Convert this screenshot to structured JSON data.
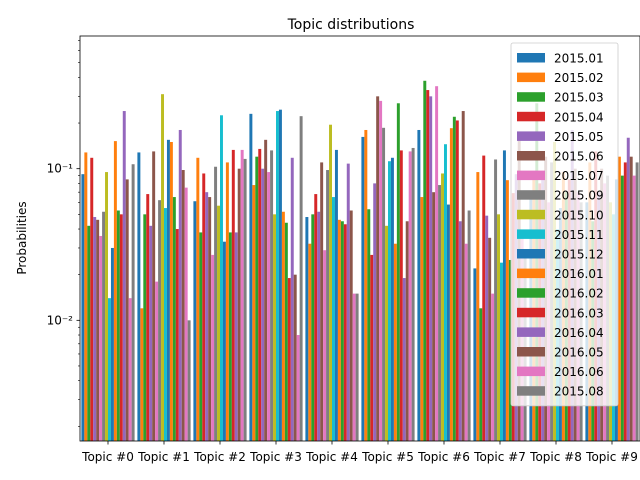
{
  "chart_data": {
    "type": "bar",
    "title": "Topic distributions",
    "xlabel": "",
    "ylabel": "Probabilities",
    "yscale": "log",
    "ylim": [
      0.0016,
      0.75
    ],
    "yticks": [
      0.01,
      0.1
    ],
    "ytick_labels": [
      "10⁻²",
      "10⁻¹"
    ],
    "legend_position": "upper right",
    "categories": [
      "Topic #0",
      "Topic #1",
      "Topic #2",
      "Topic #3",
      "Topic #4",
      "Topic #5",
      "Topic #6",
      "Topic #7",
      "Topic #8",
      "Topic #9"
    ],
    "series": [
      {
        "name": "2015.01",
        "color": "#1f77b4",
        "values": [
          0.092,
          0.128,
          0.061,
          0.23,
          0.048,
          0.162,
          0.18,
          0.022,
          0.07,
          0.06
        ]
      },
      {
        "name": "2015.02",
        "color": "#ff7f0e",
        "values": [
          0.128,
          0.012,
          0.118,
          0.078,
          0.032,
          0.18,
          0.065,
          0.095,
          0.085,
          0.11
        ]
      },
      {
        "name": "2015.03",
        "color": "#2ca02c",
        "values": [
          0.042,
          0.05,
          0.038,
          0.12,
          0.05,
          0.054,
          0.38,
          0.012,
          0.27,
          0.045
        ]
      },
      {
        "name": "2015.04",
        "color": "#d62728",
        "values": [
          0.118,
          0.068,
          0.093,
          0.135,
          0.068,
          0.027,
          0.33,
          0.122,
          0.08,
          0.13
        ]
      },
      {
        "name": "2015.05",
        "color": "#9467bd",
        "values": [
          0.048,
          0.042,
          0.07,
          0.1,
          0.052,
          0.08,
          0.3,
          0.049,
          0.09,
          0.07
        ]
      },
      {
        "name": "2015.06",
        "color": "#8c564b",
        "values": [
          0.046,
          0.13,
          0.065,
          0.155,
          0.11,
          0.3,
          0.07,
          0.035,
          0.12,
          0.1
        ]
      },
      {
        "name": "2015.07",
        "color": "#e377c2",
        "values": [
          0.036,
          0.018,
          0.027,
          0.095,
          0.029,
          0.28,
          0.35,
          0.015,
          0.06,
          0.08
        ]
      },
      {
        "name": "2015.09",
        "color": "#7f7f7f",
        "values": [
          0.052,
          0.062,
          0.103,
          0.132,
          0.098,
          0.186,
          0.078,
          0.115,
          0.11,
          0.09
        ]
      },
      {
        "name": "2015.10",
        "color": "#bcbd22",
        "values": [
          0.095,
          0.31,
          0.057,
          0.05,
          0.195,
          0.042,
          0.093,
          0.05,
          0.15,
          0.06
        ]
      },
      {
        "name": "2015.11",
        "color": "#17becf",
        "values": [
          0.014,
          0.055,
          0.225,
          0.24,
          0.065,
          0.112,
          0.145,
          0.024,
          0.04,
          0.05
        ]
      },
      {
        "name": "2015.12",
        "color": "#1f77b4",
        "values": [
          0.03,
          0.155,
          0.033,
          0.245,
          0.133,
          0.118,
          0.058,
          0.132,
          0.055,
          0.085
        ]
      },
      {
        "name": "2016.01",
        "color": "#ff7f0e",
        "values": [
          0.152,
          0.15,
          0.11,
          0.052,
          0.046,
          0.032,
          0.185,
          0.084,
          0.095,
          0.12
        ]
      },
      {
        "name": "2016.02",
        "color": "#2ca02c",
        "values": [
          0.053,
          0.065,
          0.038,
          0.044,
          0.045,
          0.27,
          0.22,
          0.025,
          0.07,
          0.09
        ]
      },
      {
        "name": "2016.03",
        "color": "#d62728",
        "values": [
          0.05,
          0.04,
          0.133,
          0.019,
          0.043,
          0.132,
          0.208,
          0.069,
          0.085,
          0.11
        ]
      },
      {
        "name": "2016.04",
        "color": "#9467bd",
        "values": [
          0.24,
          0.18,
          0.038,
          0.118,
          0.108,
          0.019,
          0.045,
          0.092,
          0.18,
          0.16
        ]
      },
      {
        "name": "2016.05",
        "color": "#8c564b",
        "values": [
          0.085,
          0.098,
          0.1,
          0.02,
          0.053,
          0.045,
          0.24,
          0.158,
          0.1,
          0.12
        ]
      },
      {
        "name": "2016.06",
        "color": "#e377c2",
        "values": [
          0.014,
          0.075,
          0.133,
          0.008,
          0.015,
          0.13,
          0.032,
          0.037,
          0.07,
          0.09
        ]
      },
      {
        "name": "2015.08",
        "color": "#7f7f7f",
        "values": [
          0.107,
          0.01,
          0.116,
          0.222,
          0.015,
          0.137,
          0.053,
          0.029,
          0.06,
          0.11
        ]
      }
    ]
  }
}
